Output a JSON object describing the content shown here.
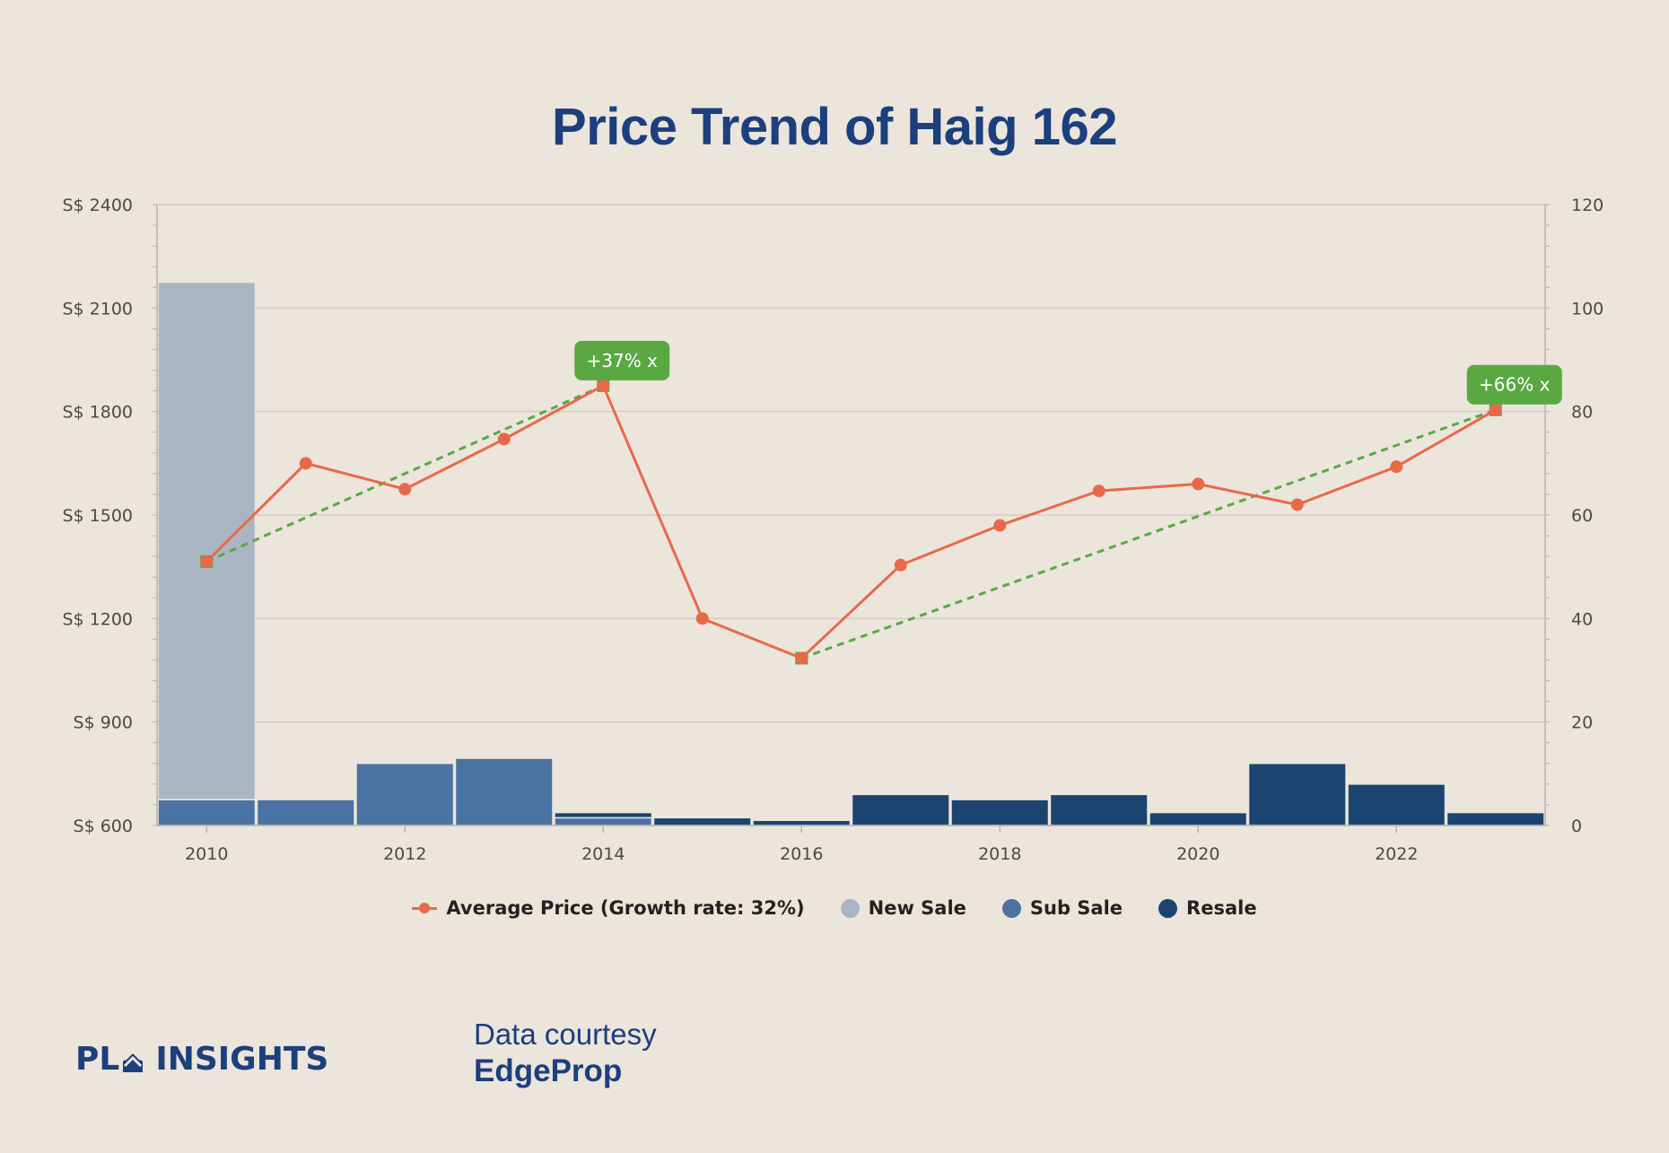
{
  "title": "Price Trend of Haig 162",
  "colors": {
    "background": "#ebe5dc",
    "title": "#1c3f7d",
    "price_line": "#e8694a",
    "trend_line": "#5aa842",
    "new_sale": "#aab5c4",
    "sub_sale": "#4a72a3",
    "resale": "#1b4470",
    "grid": "#d3ccc2"
  },
  "chart_data": {
    "type": "bar+line",
    "x_ticks": [
      "2010",
      "2012",
      "2014",
      "2016",
      "2018",
      "2020",
      "2022"
    ],
    "years": [
      2010,
      2011,
      2012,
      2013,
      2014,
      2015,
      2016,
      2017,
      2018,
      2019,
      2020,
      2021,
      2022,
      2023
    ],
    "y_left": {
      "ticks": [
        "S$ 600",
        "S$ 900",
        "S$ 1200",
        "S$ 1500",
        "S$ 1800",
        "S$ 2100",
        "S$ 2400"
      ],
      "range": [
        600,
        2400
      ]
    },
    "y_right": {
      "ticks": [
        "0",
        "20",
        "40",
        "60",
        "80",
        "100",
        "120"
      ],
      "range": [
        0,
        120
      ]
    },
    "grid": true,
    "legend_position": "bottom",
    "series": [
      {
        "name": "Average Price (Growth rate: 32%)",
        "type": "line",
        "axis": "left",
        "values": [
          1365,
          1650,
          1575,
          1720,
          1875,
          1200,
          1085,
          1355,
          1470,
          1570,
          1590,
          1530,
          1640,
          1805
        ]
      },
      {
        "name": "New Sale",
        "type": "bar",
        "axis": "right",
        "values": [
          100,
          0,
          0,
          0,
          0,
          0,
          0,
          0,
          0,
          0,
          0,
          0,
          0,
          0
        ]
      },
      {
        "name": "Sub Sale",
        "type": "bar",
        "axis": "right",
        "values": [
          5,
          5,
          12,
          13,
          1.5,
          0,
          0,
          0,
          0,
          0,
          0,
          0,
          0,
          0
        ]
      },
      {
        "name": "Resale",
        "type": "bar",
        "axis": "right",
        "values": [
          0,
          0,
          0,
          0,
          1,
          1.5,
          1,
          6,
          5,
          6,
          2.5,
          12,
          8,
          2.5
        ]
      }
    ],
    "trend_lines": [
      {
        "from_year": 2010,
        "to_year": 2014,
        "from_value": 1365,
        "to_value": 1875,
        "label": "+37% x"
      },
      {
        "from_year": 2016,
        "to_year": 2023,
        "from_value": 1085,
        "to_value": 1805,
        "label": "+66% x"
      }
    ]
  },
  "footer": {
    "brand_left": "PL",
    "brand_right": "INSIGHTS",
    "credit_line1": "Data courtesy",
    "credit_line2": "EdgeProp"
  }
}
